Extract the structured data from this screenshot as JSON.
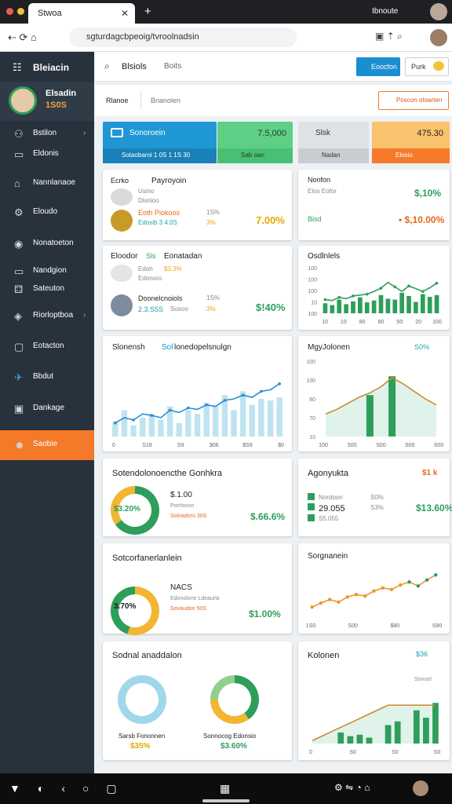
{
  "browser": {
    "tab_title": "Stwoa",
    "url": "sgturdagcbpeoig/tvroolnadsin",
    "account": "Ibnoute"
  },
  "sidebar": {
    "brand": "Bleiacin",
    "user": {
      "name": "Elsadin",
      "badge": "1S0S"
    },
    "items": [
      "Bstilon",
      "Eldonis",
      "Nannlanaoe",
      "Eloudo",
      "Nonatoeton",
      "Nandgion",
      "Sateuton",
      "Riorloptboa",
      "Eotacton",
      "Bbdut",
      "Dankage",
      "Saobie"
    ]
  },
  "header": {
    "title": "Blsiols",
    "dropdown": "Boits",
    "primary_button": "Eoocfon",
    "secondary_button": "Purk"
  },
  "subheader": {
    "tabs": [
      "Rlanoe",
      "Bnanolen"
    ],
    "action": "Poscon otoarten"
  },
  "stats": [
    {
      "title": "Sonoroein",
      "sub": "Sotaobaroi 1 0S 1 1S 30"
    },
    {
      "title": "7.5,000",
      "sub": "Sab oan"
    },
    {
      "title": "Slsk",
      "sub": "Nadan"
    },
    {
      "title": "475.30",
      "sub": "Elosio"
    }
  ],
  "cards": [
    {
      "texts": [
        "Ecrko",
        "Payroyoin",
        "Usino",
        "Dlsnioo",
        "Eoth Piokoos",
        "Edosib 3 4.0S",
        "1S%",
        "3%",
        "7.00%"
      ]
    },
    {
      "texts": [
        "Nonfon",
        "Elos Eofor",
        "$,10%",
        "Bisd",
        "• $,10.00%"
      ]
    },
    {
      "texts": [
        "Eloodor",
        "Sls",
        "Eonatadan",
        "Edoh",
        "$3.3%",
        "Edonoro",
        "Doonelcnoiols",
        "2.3.S5S",
        "1S%",
        "Sosoo",
        "3%",
        "$!40%"
      ]
    },
    {
      "texts": [
        "Osdlnlels"
      ],
      "chart": {
        "ylim": [
          0,
          100
        ],
        "ylabels": [
          "100",
          "100",
          "100",
          "10",
          "100"
        ],
        "xlabels": [
          "10",
          "10",
          "80",
          "80",
          "50",
          "20",
          "100"
        ],
        "bars": [
          22,
          18,
          30,
          20,
          26,
          35,
          24,
          28,
          40,
          32,
          30,
          45,
          38,
          25,
          42,
          36,
          40
        ],
        "line": [
          30,
          28,
          35,
          32,
          38,
          40,
          42,
          48,
          55,
          68,
          58,
          48,
          60,
          54,
          48,
          56,
          66
        ]
      }
    },
    {
      "texts": [
        "Slonensh",
        "Sol",
        "lonedopelsnulgn"
      ],
      "chart": {
        "ylim": [
          0,
          100
        ],
        "xlabels": [
          "0",
          "S18",
          "S9",
          "$06",
          "$S9",
          "$0"
        ],
        "bars": [
          20,
          35,
          15,
          25,
          30,
          22,
          40,
          18,
          35,
          30,
          45,
          40,
          55,
          35,
          60,
          42,
          50,
          48,
          52
        ],
        "line": [
          18,
          25,
          22,
          30,
          28,
          25,
          35,
          32,
          38,
          36,
          42,
          40,
          48,
          50,
          55,
          52,
          60,
          62,
          70
        ]
      }
    },
    {
      "texts": [
        "MgyJolonen",
        "S0%"
      ],
      "chart": {
        "ylim": [
          0,
          100
        ],
        "ylabels": [
          "100",
          "100",
          "80",
          "70",
          "10"
        ],
        "xlabels": [
          "100",
          "500",
          "S00",
          "S00",
          "S00"
        ],
        "area": true,
        "bars": [
          null,
          null,
          null,
          null,
          55,
          null,
          80,
          null,
          null,
          null,
          null
        ],
        "line": [
          30,
          36,
          44,
          52,
          58,
          66,
          78,
          70,
          60,
          50,
          42
        ]
      }
    },
    {
      "texts": [
        "Sotendolonoencthe Gonhkra",
        "$.1.00",
        "Porrlonon",
        "Soloadoro 30S",
        "$.66.6%",
        "$3.20%"
      ],
      "donut": [
        {
          "value": 65,
          "color": "#2e9e5b"
        },
        {
          "value": 35,
          "color": "#f2b632"
        }
      ]
    },
    {
      "texts": [
        "Agonyukta",
        "$1 k",
        "Nordoon",
        "S0%",
        "29.055",
        "S3%",
        "$13.60%",
        "S5.055"
      ]
    },
    {
      "texts": [
        "Sotcorfanerlanlein",
        "NACS",
        "Edonolone Ldeaurla",
        "Sovaudon 50S",
        "$1.00%",
        "3.70%"
      ],
      "donut": [
        {
          "value": 55,
          "color": "#f2b632"
        },
        {
          "value": 45,
          "color": "#2e9e5b"
        }
      ]
    },
    {
      "texts": [
        "Sorgnanein"
      ],
      "chart": {
        "ylim": [
          0,
          100
        ],
        "xlabels": [
          "1S0",
          "S00",
          "$80",
          "S90"
        ],
        "dots": true,
        "line": [
          20,
          28,
          35,
          30,
          40,
          45,
          42,
          52,
          58,
          55,
          64,
          70,
          62,
          74,
          84
        ]
      }
    },
    {
      "texts": [
        "Sodnal anaddalon",
        "Sarsb Fononnen",
        "$35%",
        "Sonnocog Edonsio",
        "$3.60%"
      ],
      "donut": [
        {
          "value": 100,
          "color": "#9fd8ea"
        }
      ],
      "donut2": [
        {
          "value": 40,
          "color": "#2e9e5b"
        },
        {
          "value": 35,
          "color": "#f2b632"
        },
        {
          "value": 25,
          "color": "#8fd08f"
        }
      ]
    },
    {
      "texts": [
        "Kolonen",
        "$36",
        "Sonuel"
      ],
      "chart": {
        "ylim": [
          0,
          100
        ],
        "xlabels": [
          "0",
          "S0",
          "S0",
          "S0"
        ],
        "area": true,
        "bars": [
          null,
          null,
          null,
          15,
          10,
          12,
          8,
          null,
          25,
          30,
          null,
          45,
          35,
          55
        ],
        "line": [
          4,
          10,
          16,
          22,
          28,
          34,
          40,
          46,
          52,
          52,
          52,
          52,
          52,
          52
        ]
      }
    }
  ]
}
